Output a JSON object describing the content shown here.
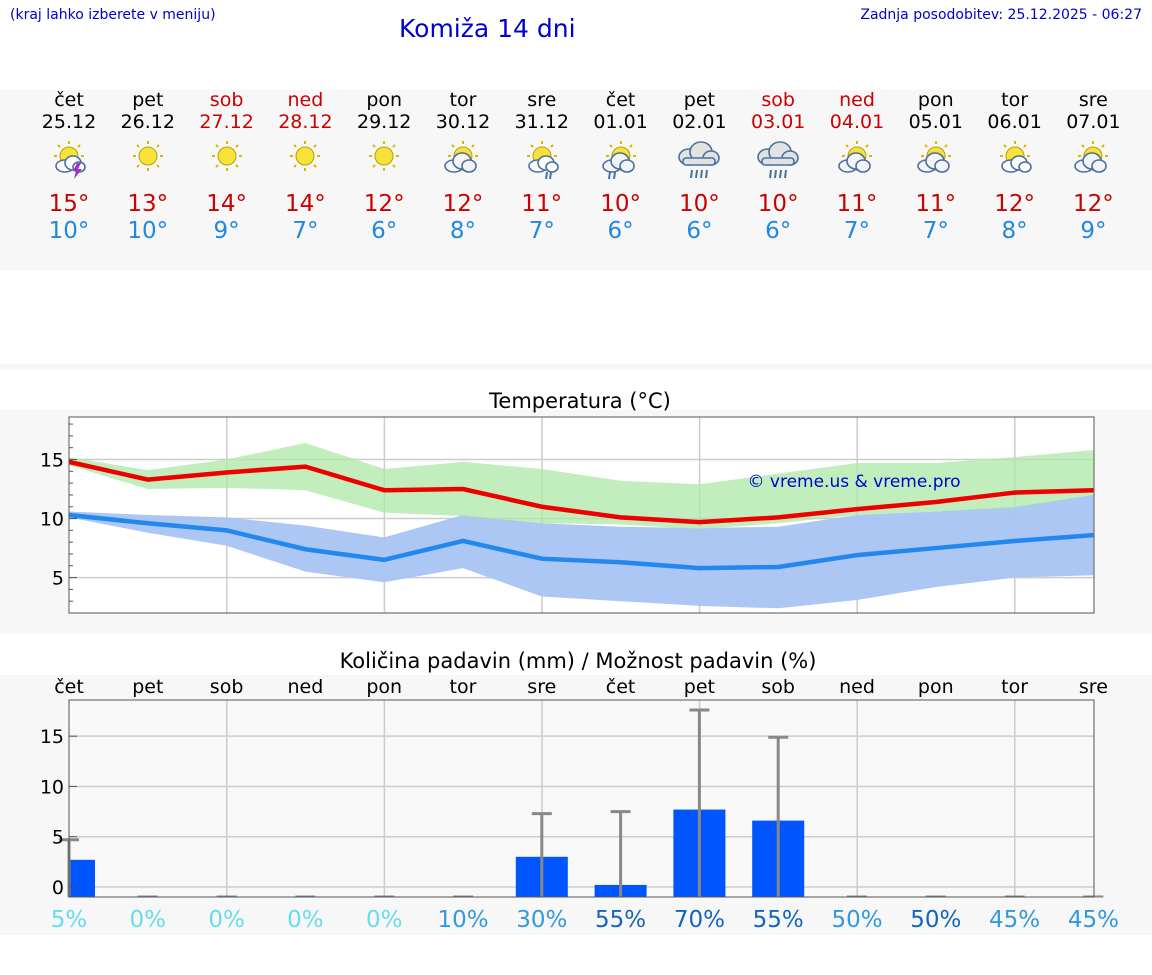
{
  "header": {
    "hint": "(kraj lahko izberete v meniju)",
    "title": "Komiža 14 dni",
    "updated": "Zadnja posodobitev: 25.12.2025 - 06:27"
  },
  "days": [
    {
      "name": "čet",
      "date": "25.12",
      "weekend": false,
      "icon": "sun-storm-icon",
      "max": "15°",
      "min": "10°"
    },
    {
      "name": "pet",
      "date": "26.12",
      "weekend": false,
      "icon": "sun-icon",
      "max": "13°",
      "min": "10°"
    },
    {
      "name": "sob",
      "date": "27.12",
      "weekend": true,
      "icon": "sun-icon",
      "max": "14°",
      "min": "9°"
    },
    {
      "name": "ned",
      "date": "28.12",
      "weekend": true,
      "icon": "sun-icon",
      "max": "14°",
      "min": "7°"
    },
    {
      "name": "pon",
      "date": "29.12",
      "weekend": false,
      "icon": "sun-icon",
      "max": "12°",
      "min": "6°"
    },
    {
      "name": "tor",
      "date": "30.12",
      "weekend": false,
      "icon": "partly-cloudy-icon",
      "max": "12°",
      "min": "8°"
    },
    {
      "name": "sre",
      "date": "31.12",
      "weekend": false,
      "icon": "sun-rain-icon",
      "max": "11°",
      "min": "7°"
    },
    {
      "name": "čet",
      "date": "01.01",
      "weekend": false,
      "icon": "cloud-sun-rain-icon",
      "max": "10°",
      "min": "6°"
    },
    {
      "name": "pet",
      "date": "02.01",
      "weekend": false,
      "icon": "cloud-rain-icon",
      "max": "10°",
      "min": "6°"
    },
    {
      "name": "sob",
      "date": "03.01",
      "weekend": true,
      "icon": "cloud-rain-icon",
      "max": "10°",
      "min": "6°"
    },
    {
      "name": "ned",
      "date": "04.01",
      "weekend": true,
      "icon": "partly-cloudy-icon",
      "max": "11°",
      "min": "7°"
    },
    {
      "name": "pon",
      "date": "05.01",
      "weekend": false,
      "icon": "partly-cloudy-icon",
      "max": "11°",
      "min": "7°"
    },
    {
      "name": "tor",
      "date": "06.01",
      "weekend": false,
      "icon": "sun-small-cloud-icon",
      "max": "12°",
      "min": "8°"
    },
    {
      "name": "sre",
      "date": "07.01",
      "weekend": false,
      "icon": "partly-cloudy-icon",
      "max": "12°",
      "min": "9°"
    }
  ],
  "colors": {
    "max_line": "#ee0000",
    "min_line": "#2288ee",
    "max_band": "#aee8a8",
    "min_band": "#a8c4f2",
    "bars": "#0055ff",
    "error": "#888888"
  },
  "chart_data": [
    {
      "type": "line",
      "title": "Temperatura (°C)",
      "watermark": "© vreme.us & vreme.pro",
      "ylim": [
        2,
        18.6
      ],
      "yticks": [
        5,
        10,
        15
      ],
      "grid": true,
      "series": [
        {
          "name": "max",
          "values": [
            14.8,
            13.3,
            13.9,
            14.4,
            12.4,
            12.5,
            11.0,
            10.1,
            9.7,
            10.1,
            10.8,
            11.4,
            12.2,
            12.4
          ]
        },
        {
          "name": "min",
          "values": [
            10.3,
            9.6,
            9.0,
            7.4,
            6.5,
            8.1,
            6.6,
            6.3,
            5.8,
            5.9,
            6.9,
            7.5,
            8.1,
            8.6
          ]
        },
        {
          "name": "max_range",
          "upper": [
            15.2,
            14.1,
            15.0,
            16.4,
            14.2,
            14.8,
            14.2,
            13.2,
            12.9,
            13.8,
            14.7,
            14.7,
            15.2,
            15.8
          ],
          "lower": [
            14.5,
            12.5,
            12.6,
            12.4,
            10.5,
            10.2,
            9.6,
            9.5,
            9.1,
            9.6,
            10.3,
            10.6,
            10.9,
            12.0
          ]
        },
        {
          "name": "min_range",
          "upper": [
            10.6,
            10.3,
            10.1,
            9.4,
            8.4,
            10.3,
            9.6,
            9.3,
            9.2,
            9.3,
            10.3,
            10.6,
            11.0,
            12.0
          ],
          "lower": [
            10.1,
            8.8,
            7.7,
            5.5,
            4.6,
            5.8,
            3.4,
            3.0,
            2.6,
            2.4,
            3.1,
            4.2,
            5.0,
            5.2
          ]
        }
      ]
    },
    {
      "type": "bar",
      "title": "Količina padavin (mm) / Možnost padavin (%)",
      "categories": [
        "čet",
        "pet",
        "sob",
        "ned",
        "pon",
        "tor",
        "sre",
        "čet",
        "pet",
        "sob",
        "ned",
        "pon",
        "tor",
        "sre"
      ],
      "values": [
        2.7,
        0,
        0,
        0,
        0,
        0,
        3.0,
        0.2,
        7.7,
        6.6,
        0,
        0,
        0,
        0
      ],
      "error_upper": [
        4.7,
        0,
        0,
        0,
        0,
        0,
        7.3,
        7.5,
        17.6,
        14.9,
        0,
        0,
        0,
        0
      ],
      "probability": [
        "5%",
        "0%",
        "0%",
        "0%",
        "0%",
        "10%",
        "30%",
        "55%",
        "70%",
        "55%",
        "50%",
        "50%",
        "45%",
        "45%"
      ],
      "probability_colors": [
        "#66ddee",
        "#66ddee",
        "#66ddee",
        "#66ddee",
        "#66ddee",
        "#3399dd",
        "#3399dd",
        "#1166bb",
        "#1166bb",
        "#1166bb",
        "#3399dd",
        "#1166bb",
        "#3399dd",
        "#3399dd"
      ],
      "ylim": [
        -1,
        18.6
      ],
      "yticks": [
        0,
        5,
        10,
        15
      ],
      "grid": true
    }
  ]
}
